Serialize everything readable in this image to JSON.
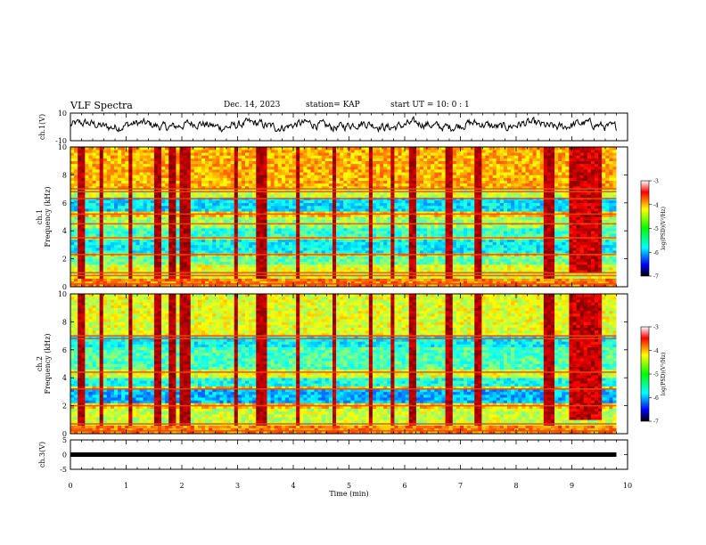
{
  "header": {
    "title": "VLF Spectra",
    "date": "Dec. 14, 2023",
    "station": "station= KAP",
    "start": "start  UT =   10: 0  : 1"
  },
  "chart_data": [
    {
      "type": "line",
      "panel": "ch1-waveform",
      "ylabel": "ch.1(V)",
      "ylim": [
        -10,
        10
      ],
      "yticks": [
        "10",
        "-10"
      ],
      "xlim": [
        0,
        10
      ],
      "data_end_min": 9.8,
      "line_color": "#000000"
    },
    {
      "type": "heatmap",
      "panel": "ch1-spectrogram",
      "ylabel": "ch.1\nFrequency (kHz)",
      "ylim": [
        0,
        10
      ],
      "yticks": [
        "0",
        "2",
        "4",
        "6",
        "8",
        "10"
      ],
      "xlim": [
        0,
        10
      ],
      "data_end_min": 9.8,
      "colorbar": {
        "label": "log(PSD)(V²/Hz)",
        "range": [
          -7,
          -3
        ],
        "ticks": [
          "-3",
          "-4",
          "-5",
          "-6",
          "-7"
        ]
      },
      "bands": [
        {
          "kHz": [
            0,
            0.5
          ],
          "level": -4.0
        },
        {
          "kHz": [
            0.5,
            1.5
          ],
          "level": -4.6
        },
        {
          "kHz": [
            1.5,
            2.2
          ],
          "level": -5.1
        },
        {
          "kHz": [
            2.2,
            2.4
          ],
          "level": -4.3
        },
        {
          "kHz": [
            2.4,
            3.4
          ],
          "level": -5.5
        },
        {
          "kHz": [
            3.4,
            3.6
          ],
          "level": -4.5
        },
        {
          "kHz": [
            3.6,
            4.2
          ],
          "level": -5.3
        },
        {
          "kHz": [
            4.2,
            5.0
          ],
          "level": -4.9
        },
        {
          "kHz": [
            5.0,
            5.4
          ],
          "level": -4.3
        },
        {
          "kHz": [
            5.4,
            6.4
          ],
          "level": -5.6
        },
        {
          "kHz": [
            6.4,
            7.0
          ],
          "level": -4.7
        },
        {
          "kHz": [
            7.0,
            10.0
          ],
          "level": -4.2
        }
      ],
      "constant_lines_kHz": [
        0.2,
        0.8,
        1.0,
        2.3,
        3.5,
        4.5,
        5.2,
        6.3,
        6.8,
        7.0
      ],
      "burst_times_min": [
        0.15,
        0.52,
        1.05,
        1.55,
        1.8,
        2.0,
        2.1,
        2.95,
        3.35,
        3.45,
        4.05,
        4.7,
        5.35,
        5.75,
        6.1,
        6.75,
        7.3,
        8.5,
        8.6
      ],
      "interference_block": {
        "t_min": [
          8.9,
          9.5
        ],
        "level": -3.3
      }
    },
    {
      "type": "heatmap",
      "panel": "ch2-spectrogram",
      "ylabel": "ch.2\nFrequency (kHz)",
      "ylim": [
        0,
        10
      ],
      "yticks": [
        "0",
        "2",
        "4",
        "6",
        "8",
        "10"
      ],
      "xlim": [
        0,
        10
      ],
      "data_end_min": 9.8,
      "colorbar": {
        "label": "log(PSD)(V²/Hz)",
        "range": [
          -7,
          -3
        ],
        "ticks": [
          "-3",
          "-4",
          "-5",
          "-6",
          "-7"
        ]
      },
      "bands": [
        {
          "kHz": [
            0,
            0.5
          ],
          "level": -4.0
        },
        {
          "kHz": [
            0.5,
            1.8
          ],
          "level": -4.7
        },
        {
          "kHz": [
            1.8,
            2.2
          ],
          "level": -4.3
        },
        {
          "kHz": [
            2.2,
            3.1
          ],
          "level": -5.8
        },
        {
          "kHz": [
            3.1,
            3.3
          ],
          "level": -4.3
        },
        {
          "kHz": [
            3.3,
            4.0
          ],
          "level": -5.4
        },
        {
          "kHz": [
            4.0,
            4.6
          ],
          "level": -4.6
        },
        {
          "kHz": [
            4.6,
            6.2
          ],
          "level": -5.2
        },
        {
          "kHz": [
            6.2,
            7.0
          ],
          "level": -5.5
        },
        {
          "kHz": [
            7.0,
            10.0
          ],
          "level": -4.6
        }
      ],
      "constant_lines_kHz": [
        0.2,
        0.7,
        2.0,
        3.2,
        4.4,
        6.8,
        7.0
      ],
      "burst_times_min": [
        0.15,
        0.52,
        1.05,
        1.55,
        1.8,
        2.0,
        2.1,
        2.95,
        3.35,
        3.45,
        4.05,
        4.7,
        5.35,
        5.75,
        6.1,
        6.75,
        7.3,
        8.5,
        8.6
      ],
      "interference_block": {
        "t_min": [
          8.9,
          9.5
        ],
        "level": -3.3
      }
    },
    {
      "type": "line",
      "panel": "ch3-waveform",
      "ylabel": "ch.3(V)",
      "ylim": [
        -5,
        5
      ],
      "yticks": [
        "5",
        "0",
        "-5"
      ],
      "xlim": [
        0,
        10
      ],
      "xlabel": "Time  (min)",
      "xticks": [
        "0",
        "1",
        "2",
        "3",
        "4",
        "5",
        "6",
        "7",
        "8",
        "9",
        "10"
      ],
      "data_end_min": 9.8,
      "value_V": 0,
      "line_color": "#000000"
    }
  ]
}
